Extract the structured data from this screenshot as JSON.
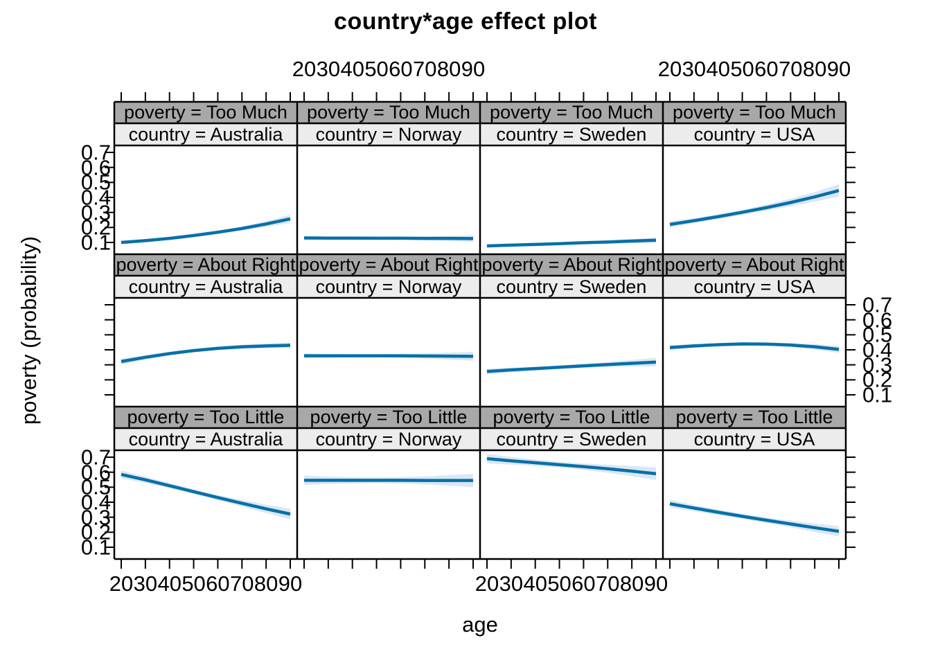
{
  "title": "country*age effect plot",
  "xlabel": "age",
  "ylabel": "poverty (probability)",
  "colors": {
    "line": "#0670a8",
    "band": "#dbe7f3",
    "strip_poverty_bg": "#a8a8a8",
    "strip_country_bg": "#ececec",
    "border": "#000000"
  },
  "axis": {
    "x_tick_labels": [
      "20",
      "30",
      "40",
      "50",
      "60",
      "70",
      "80",
      "90"
    ],
    "y_tick_labels": [
      "0.7",
      "0.6",
      "0.5",
      "0.4",
      "0.3",
      "0.2",
      "0.1"
    ],
    "x_labels_top_columns": [
      "Norway",
      "USA"
    ],
    "x_labels_bottom_columns": [
      "Australia",
      "Sweden"
    ],
    "y_labels_left_rows": [
      "Too Much",
      "Too Little"
    ],
    "y_labels_right_rows": [
      "About Right"
    ]
  },
  "chart_data": {
    "type": "line",
    "layout": "lattice 4 columns (country) x 3 rows (poverty), line + confidence band per panel",
    "title": "country*age effect plot",
    "xlabel": "age",
    "ylabel": "poverty (probability)",
    "x": [
      20,
      30,
      40,
      50,
      60,
      70,
      80,
      90
    ],
    "x_ticks": [
      20,
      30,
      40,
      50,
      60,
      70,
      80,
      90
    ],
    "y_ticks": [
      0.1,
      0.2,
      0.3,
      0.4,
      0.5,
      0.6,
      0.7
    ],
    "xlim": [
      17.1,
      92.9
    ],
    "ylim": [
      0.02,
      0.75
    ],
    "grid": false,
    "rows": [
      {
        "key": "Too Much",
        "strip": "poverty = Too Much"
      },
      {
        "key": "About Right",
        "strip": "poverty = About Right"
      },
      {
        "key": "Too Little",
        "strip": "poverty = Too Little"
      }
    ],
    "cols": [
      {
        "key": "Australia",
        "strip": "country = Australia"
      },
      {
        "key": "Norway",
        "strip": "country = Norway"
      },
      {
        "key": "Sweden",
        "strip": "country = Sweden"
      },
      {
        "key": "USA",
        "strip": "country = USA"
      }
    ],
    "panels": [
      {
        "poverty": "Too Much",
        "country": "Australia",
        "y": [
          0.1,
          0.112,
          0.127,
          0.146,
          0.168,
          0.193,
          0.223,
          0.257
        ],
        "lo": [
          0.088,
          0.102,
          0.118,
          0.137,
          0.158,
          0.18,
          0.204,
          0.23
        ],
        "hi": [
          0.112,
          0.122,
          0.136,
          0.155,
          0.178,
          0.206,
          0.242,
          0.284
        ]
      },
      {
        "poverty": "Too Much",
        "country": "Norway",
        "y": [
          0.13,
          0.129,
          0.129,
          0.128,
          0.128,
          0.127,
          0.127,
          0.126
        ],
        "lo": [
          0.117,
          0.119,
          0.12,
          0.12,
          0.118,
          0.114,
          0.11,
          0.104
        ],
        "hi": [
          0.143,
          0.139,
          0.138,
          0.136,
          0.138,
          0.14,
          0.144,
          0.148
        ]
      },
      {
        "poverty": "Too Much",
        "country": "Sweden",
        "y": [
          0.077,
          0.082,
          0.087,
          0.092,
          0.098,
          0.103,
          0.109,
          0.115
        ],
        "lo": [
          0.066,
          0.073,
          0.079,
          0.084,
          0.089,
          0.092,
          0.095,
          0.097
        ],
        "hi": [
          0.088,
          0.091,
          0.095,
          0.1,
          0.107,
          0.114,
          0.123,
          0.133
        ]
      },
      {
        "poverty": "Too Much",
        "country": "USA",
        "y": [
          0.22,
          0.245,
          0.272,
          0.301,
          0.332,
          0.366,
          0.404,
          0.446
        ],
        "lo": [
          0.199,
          0.228,
          0.256,
          0.284,
          0.312,
          0.34,
          0.372,
          0.405
        ],
        "hi": [
          0.241,
          0.262,
          0.288,
          0.318,
          0.352,
          0.392,
          0.436,
          0.487
        ]
      },
      {
        "poverty": "About Right",
        "country": "Australia",
        "y": [
          0.322,
          0.35,
          0.375,
          0.395,
          0.41,
          0.42,
          0.426,
          0.43
        ],
        "lo": [
          0.303,
          0.335,
          0.362,
          0.384,
          0.398,
          0.406,
          0.41,
          0.411
        ],
        "hi": [
          0.341,
          0.365,
          0.388,
          0.406,
          0.422,
          0.434,
          0.442,
          0.449
        ]
      },
      {
        "poverty": "About Right",
        "country": "Norway",
        "y": [
          0.36,
          0.36,
          0.36,
          0.36,
          0.36,
          0.359,
          0.358,
          0.357
        ],
        "lo": [
          0.344,
          0.348,
          0.35,
          0.35,
          0.347,
          0.342,
          0.335,
          0.327
        ],
        "hi": [
          0.376,
          0.372,
          0.37,
          0.37,
          0.373,
          0.376,
          0.381,
          0.387
        ]
      },
      {
        "poverty": "About Right",
        "country": "Sweden",
        "y": [
          0.256,
          0.266,
          0.275,
          0.284,
          0.293,
          0.302,
          0.31,
          0.318
        ],
        "lo": [
          0.237,
          0.251,
          0.262,
          0.272,
          0.28,
          0.285,
          0.288,
          0.289
        ],
        "hi": [
          0.275,
          0.281,
          0.288,
          0.296,
          0.306,
          0.319,
          0.332,
          0.347
        ]
      },
      {
        "poverty": "About Right",
        "country": "USA",
        "y": [
          0.415,
          0.426,
          0.434,
          0.439,
          0.438,
          0.432,
          0.42,
          0.403
        ],
        "lo": [
          0.399,
          0.413,
          0.423,
          0.428,
          0.427,
          0.419,
          0.402,
          0.38
        ],
        "hi": [
          0.431,
          0.439,
          0.445,
          0.45,
          0.449,
          0.445,
          0.438,
          0.426
        ]
      },
      {
        "poverty": "Too Little",
        "country": "Australia",
        "y": [
          0.585,
          0.549,
          0.51,
          0.47,
          0.431,
          0.393,
          0.356,
          0.321
        ],
        "lo": [
          0.559,
          0.528,
          0.493,
          0.454,
          0.414,
          0.371,
          0.328,
          0.286
        ],
        "hi": [
          0.611,
          0.57,
          0.527,
          0.486,
          0.448,
          0.415,
          0.384,
          0.356
        ]
      },
      {
        "poverty": "Too Little",
        "country": "Norway",
        "y": [
          0.546,
          0.546,
          0.546,
          0.546,
          0.546,
          0.545,
          0.545,
          0.545
        ],
        "lo": [
          0.514,
          0.521,
          0.525,
          0.527,
          0.524,
          0.518,
          0.51,
          0.501
        ],
        "hi": [
          0.578,
          0.571,
          0.567,
          0.565,
          0.568,
          0.572,
          0.58,
          0.589
        ]
      },
      {
        "poverty": "Too Little",
        "country": "Sweden",
        "y": [
          0.69,
          0.676,
          0.663,
          0.65,
          0.637,
          0.623,
          0.607,
          0.59
        ],
        "lo": [
          0.658,
          0.651,
          0.642,
          0.631,
          0.616,
          0.596,
          0.573,
          0.548
        ],
        "hi": [
          0.722,
          0.701,
          0.684,
          0.669,
          0.658,
          0.65,
          0.641,
          0.632
        ]
      },
      {
        "poverty": "Too Little",
        "country": "USA",
        "y": [
          0.39,
          0.361,
          0.333,
          0.306,
          0.28,
          0.255,
          0.23,
          0.206
        ],
        "lo": [
          0.364,
          0.34,
          0.315,
          0.289,
          0.262,
          0.233,
          0.202,
          0.172
        ],
        "hi": [
          0.416,
          0.382,
          0.351,
          0.323,
          0.298,
          0.277,
          0.258,
          0.24
        ]
      }
    ]
  }
}
